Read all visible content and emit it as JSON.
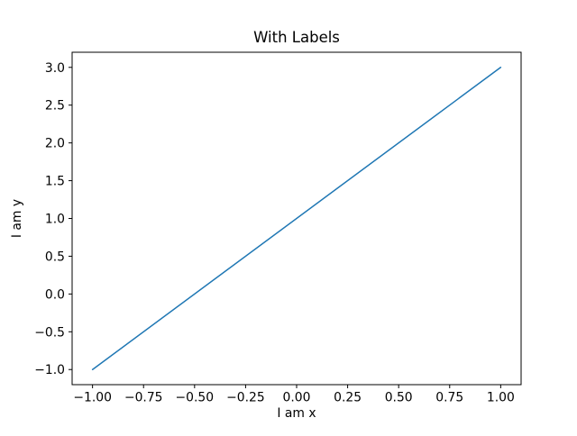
{
  "chart_data": {
    "type": "line",
    "title": "With Labels",
    "xlabel": "I am x",
    "ylabel": "I am y",
    "xlim": [
      -1.1,
      1.1
    ],
    "ylim": [
      -1.2,
      3.2
    ],
    "grid": false,
    "legend": "none",
    "background_color": "#ffffff",
    "spine_color": "#000000",
    "xticks": {
      "values": [
        -1.0,
        -0.75,
        -0.5,
        -0.25,
        0.0,
        0.25,
        0.5,
        0.75,
        1.0
      ],
      "labels": [
        "−1.00",
        "−0.75",
        "−0.50",
        "−0.25",
        "0.00",
        "0.25",
        "0.50",
        "0.75",
        "1.00"
      ]
    },
    "yticks": {
      "values": [
        -1.0,
        -0.5,
        0.0,
        0.5,
        1.0,
        1.5,
        2.0,
        2.5,
        3.0
      ],
      "labels": [
        "−1.0",
        "−0.5",
        "0.0",
        "0.5",
        "1.0",
        "1.5",
        "2.0",
        "2.5",
        "3.0"
      ]
    },
    "series": [
      {
        "color": "#1f77b4",
        "x": [
          -1,
          1
        ],
        "y": [
          -1,
          3
        ]
      }
    ]
  }
}
